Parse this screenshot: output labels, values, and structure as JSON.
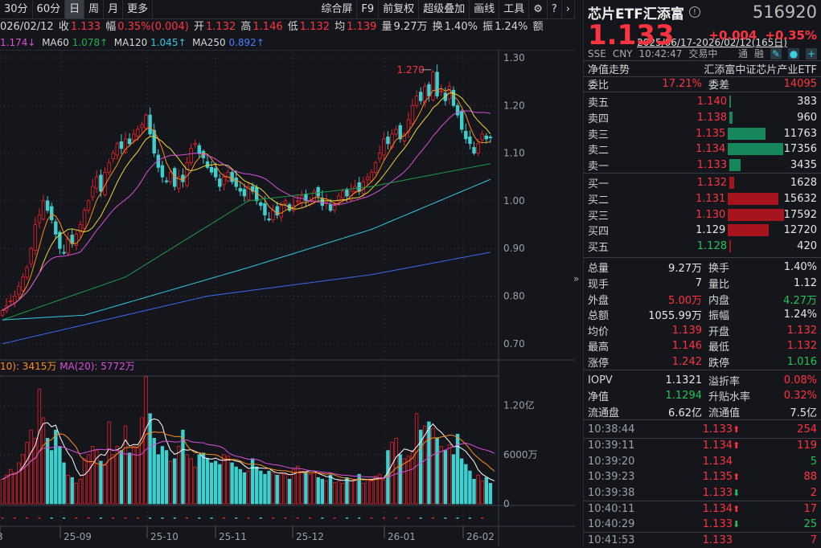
{
  "toolbar": {
    "periods": [
      "30分",
      "60分",
      "日",
      "周",
      "月",
      "更多"
    ],
    "active": "日",
    "tools": [
      "综合屏",
      "F9",
      "前复权",
      "超级叠加",
      "画线",
      "工具"
    ],
    "gear": "gear-icon",
    "help": "help-icon",
    "more": "chevron-right-icon"
  },
  "quote": {
    "date": "026/02/12",
    "close_label": "收",
    "close": "1.133",
    "chg_label": "幅",
    "chg": "0.35%(0.004)",
    "open_label": "开",
    "open": "1.132",
    "high_label": "高",
    "high": "1.146",
    "low_label": "低",
    "low": "1.132",
    "avg_label": "均",
    "avg": "1.139",
    "vol_label": "量",
    "vol": "9.27万",
    "turn_label": "换",
    "turn": "1.40%",
    "amp_label": "振",
    "amp": "1.24%",
    "more": "额"
  },
  "ma_legend": {
    "ma20": "1.174↓",
    "ma60_label": "MA60",
    "ma60": "1.078↑",
    "ma120_label": "MA120",
    "ma120": "1.045↑",
    "ma250_label": "MA250",
    "ma250": "0.892↑"
  },
  "range": "2025/06/17-2026/02/12(165日)",
  "vol_legend": {
    "ma10": "10): 3415万",
    "ma20": "MA(20): 5772万"
  },
  "colors": {
    "up": "#e8202a",
    "down": "#3ecfcf",
    "ma5": "#ff8c1a",
    "ma10": "#f5d33a",
    "ma20": "#d84fd8",
    "ma60": "#1f9a4a",
    "ma120": "#33c8e0",
    "ma250": "#3a6cf0"
  },
  "chart_data": {
    "type": "candlestick",
    "price_ticks": [
      "1.30",
      "1.20",
      "1.10",
      "1.00",
      "0.90",
      "0.80",
      "0.70"
    ],
    "ylim": [
      0.7,
      1.3
    ],
    "vol_ticks": [
      "1.20亿",
      "6000万",
      "0"
    ],
    "x_ticks": [
      "8",
      "25-09",
      "25-10",
      "25-11",
      "25-12",
      "26-01",
      "26-02"
    ],
    "high_mark": "1.270",
    "closes": [
      0.77,
      0.78,
      0.79,
      0.8,
      0.82,
      0.84,
      0.86,
      0.9,
      0.95,
      0.97,
      1.0,
      0.98,
      0.96,
      0.93,
      0.9,
      0.89,
      0.92,
      0.91,
      0.93,
      0.95,
      0.98,
      1.0,
      1.03,
      1.05,
      1.02,
      1.06,
      1.08,
      1.1,
      1.12,
      1.11,
      1.13,
      1.12,
      1.14,
      1.15,
      1.16,
      1.18,
      1.14,
      1.1,
      1.07,
      1.05,
      1.04,
      1.06,
      1.03,
      1.05,
      1.04,
      1.08,
      1.11,
      1.12,
      1.1,
      1.09,
      1.07,
      1.06,
      1.05,
      1.03,
      1.05,
      1.06,
      1.04,
      1.03,
      1.02,
      1.01,
      1.03,
      1.02,
      1.0,
      0.99,
      0.97,
      0.96,
      0.98,
      0.97,
      0.99,
      1.0,
      0.98,
      0.99,
      1.0,
      1.01,
      1.0,
      1.0,
      1.02,
      1.01,
      0.99,
      1.0,
      0.98,
      0.99,
      1.01,
      1.02,
      1.01,
      1.02,
      1.03,
      1.02,
      1.04,
      1.05,
      1.06,
      1.08,
      1.1,
      1.13,
      1.12,
      1.14,
      1.15,
      1.13,
      1.14,
      1.17,
      1.2,
      1.22,
      1.21,
      1.24,
      1.22,
      1.27,
      1.22,
      1.23,
      1.21,
      1.24,
      1.2,
      1.18,
      1.15,
      1.13,
      1.12,
      1.1,
      1.12,
      1.14,
      1.13,
      1.133
    ],
    "volumes_wan": [
      3000,
      3500,
      4200,
      3800,
      5000,
      6000,
      7500,
      9000,
      8000,
      14000,
      10500,
      8000,
      6500,
      9000,
      7000,
      5000,
      3500,
      3200,
      2500,
      3000,
      5500,
      6000,
      7000,
      6500,
      5200,
      4800,
      10000,
      6000,
      7000,
      6500,
      9500,
      6200,
      7000,
      6800,
      10500,
      15500,
      11000,
      8000,
      6000,
      7000,
      6500,
      5200,
      5500,
      7000,
      9000,
      6000,
      5500,
      4500,
      6000,
      6200,
      5500,
      5000,
      5200,
      4800,
      6000,
      5800,
      5000,
      4500,
      4200,
      3800,
      4000,
      5500,
      4500,
      4000,
      3600,
      4000,
      3800,
      3500,
      3800,
      3600,
      3000,
      4200,
      4600,
      4000,
      3800,
      3600,
      4000,
      3200,
      3000,
      2800,
      3500,
      2600,
      2800,
      2500,
      3200,
      2800,
      3000,
      3600,
      2500,
      3000,
      2800,
      3400,
      3600,
      2900,
      6500,
      7500,
      8000,
      6000,
      5500,
      5800,
      6500,
      11000,
      9000,
      9500,
      10000,
      9200,
      8000,
      7000,
      6500,
      7200,
      6000,
      8500,
      5500,
      4800,
      4000,
      3000,
      3500,
      2800,
      3200,
      2500,
      2000
    ],
    "ma60_keys": [
      [
        0,
        0.75
      ],
      [
        30,
        0.84
      ],
      [
        60,
        1.0
      ],
      [
        90,
        1.03
      ],
      [
        119,
        1.078
      ]
    ],
    "ma120_keys": [
      [
        0,
        0.75
      ],
      [
        20,
        0.76
      ],
      [
        60,
        0.86
      ],
      [
        90,
        0.94
      ],
      [
        119,
        1.045
      ]
    ],
    "ma250_keys": [
      [
        0,
        0.7
      ],
      [
        50,
        0.8
      ],
      [
        90,
        0.845
      ],
      [
        119,
        0.892
      ]
    ]
  },
  "panel": {
    "name": "芯片ETF汇添富",
    "code": "516920",
    "price": "1.133",
    "change": "+0.004",
    "change_pct": "+0.35%",
    "exchange": "SSE",
    "currency": "CNY",
    "time": "10:42:47",
    "status": "交易中",
    "tong": "通",
    "rong": "融",
    "nav_trend": "净值走势",
    "index_name": "汇添富中证芯片产业ETF",
    "weibi_label": "委比",
    "weibi": "17.21%",
    "weicha_label": "委差",
    "weicha": "14095",
    "asks": [
      {
        "label": "卖五",
        "price": "1.140",
        "qty": "383",
        "c": "red"
      },
      {
        "label": "卖四",
        "price": "1.138",
        "qty": "960",
        "c": "red"
      },
      {
        "label": "卖三",
        "price": "1.135",
        "qty": "11763",
        "c": "red"
      },
      {
        "label": "卖二",
        "price": "1.134",
        "qty": "17356",
        "c": "red"
      },
      {
        "label": "卖一",
        "price": "1.133",
        "qty": "3435",
        "c": "red"
      }
    ],
    "bids": [
      {
        "label": "买一",
        "price": "1.132",
        "qty": "1628",
        "c": "red"
      },
      {
        "label": "买二",
        "price": "1.131",
        "qty": "15632",
        "c": "red"
      },
      {
        "label": "买三",
        "price": "1.130",
        "qty": "17592",
        "c": "red"
      },
      {
        "label": "买四",
        "price": "1.129",
        "qty": "12720",
        "c": "white"
      },
      {
        "label": "买五",
        "price": "1.128",
        "qty": "420",
        "c": "green"
      }
    ],
    "stats": [
      [
        "总量",
        "9.27万",
        "white",
        "换手",
        "1.40%",
        "white"
      ],
      [
        "现手",
        "7",
        "white",
        "量比",
        "1.12",
        "white"
      ],
      [
        "外盘",
        "5.00万",
        "red",
        "内盘",
        "4.27万",
        "green"
      ],
      [
        "总额",
        "1055.99万",
        "white",
        "振幅",
        "1.24%",
        "white"
      ],
      [
        "均价",
        "1.139",
        "red",
        "开盘",
        "1.132",
        "red"
      ],
      [
        "最高",
        "1.146",
        "red",
        "最低",
        "1.132",
        "red"
      ],
      [
        "涨停",
        "1.242",
        "red",
        "跌停",
        "1.016",
        "green"
      ]
    ],
    "etf": [
      [
        "IOPV",
        "1.1321",
        "white",
        "溢折率",
        "0.08%",
        "red"
      ],
      [
        "净值",
        "1.1294",
        "green",
        "升贴水率",
        "0.32%",
        "red"
      ],
      [
        "流通盘",
        "6.62亿",
        "white",
        "流通值",
        "7.5亿",
        "white"
      ]
    ],
    "trades": [
      [
        "10:38:44",
        "1.133",
        "up",
        "254",
        "red"
      ],
      [
        "10:39:11",
        "1.134",
        "up",
        "119",
        "red"
      ],
      [
        "10:39:20",
        "1.134",
        "",
        "5",
        "green"
      ],
      [
        "10:39:23",
        "1.135",
        "up",
        "88",
        "red"
      ],
      [
        "10:39:38",
        "1.133",
        "down",
        "2",
        "red"
      ],
      [
        "10:40:11",
        "1.134",
        "up",
        "17",
        "red"
      ],
      [
        "10:40:29",
        "1.133",
        "down",
        "25",
        "green"
      ],
      [
        "10:41:53",
        "1.133",
        "",
        "7",
        "red"
      ]
    ]
  }
}
